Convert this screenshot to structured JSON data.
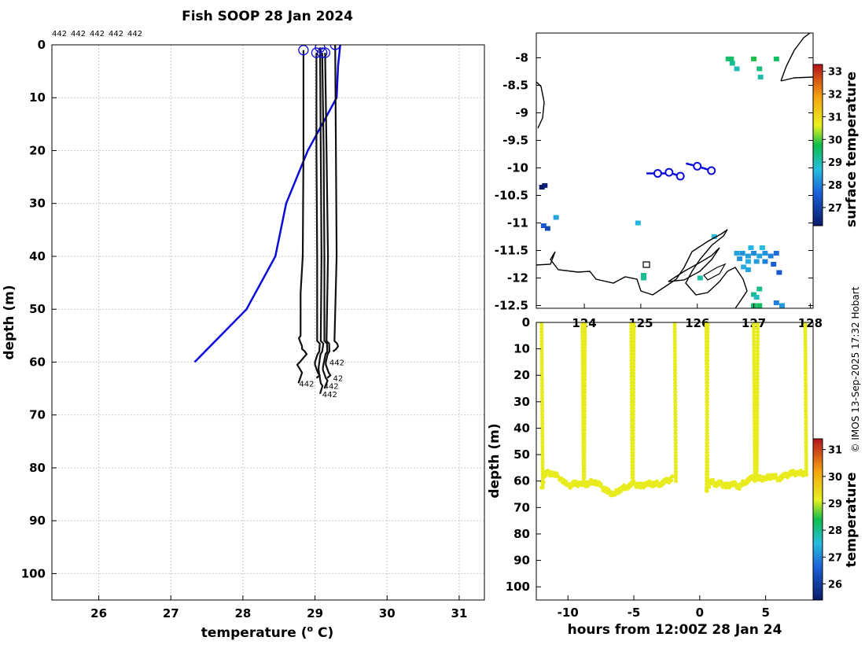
{
  "colors": {
    "axis": "#000000",
    "profile_line": "#111111",
    "reference_line": "#0b0bd9",
    "track": "#0b0bd9",
    "coast": "#000000"
  },
  "chart_data": [
    {
      "id": "profile",
      "type": "line",
      "title": "Fish SOOP 28 Jan 2024",
      "top_labels": [
        "442",
        "442",
        "442",
        "442",
        "442"
      ],
      "xlabel": "temperature (",
      "xlabel_sup": "o",
      "xlabel_end": " C)",
      "ylabel": "depth (m)",
      "xlim": [
        25.35,
        31.35
      ],
      "ylim": [
        105,
        0
      ],
      "xticks": [
        26,
        27,
        28,
        29,
        30,
        31
      ],
      "yticks": [
        0,
        10,
        20,
        30,
        40,
        50,
        60,
        70,
        80,
        90,
        100
      ],
      "grid": true,
      "reference_series": {
        "name": "climatology",
        "points": [
          [
            29.35,
            0
          ],
          [
            29.32,
            4
          ],
          [
            29.3,
            10
          ],
          [
            28.9,
            20
          ],
          [
            28.6,
            30
          ],
          [
            28.45,
            40
          ],
          [
            28.05,
            50
          ],
          [
            27.33,
            60
          ]
        ]
      },
      "profiles": [
        {
          "name": "442",
          "start": [
            28.84,
            1
          ],
          "bottom": 64,
          "points": [
            [
              28.84,
              1
            ],
            [
              28.84,
              20
            ],
            [
              28.83,
              40
            ],
            [
              28.8,
              47
            ],
            [
              28.8,
              55
            ],
            [
              28.82,
              57
            ],
            [
              28.86,
              58
            ],
            [
              28.79,
              60
            ],
            [
              28.82,
              62
            ],
            [
              28.77,
              64
            ]
          ],
          "label": "442",
          "label_at": [
            28.78,
            64
          ]
        },
        {
          "name": "442",
          "start": [
            29.02,
            1.5
          ],
          "bottom": 63,
          "points": [
            [
              29.02,
              1.5
            ],
            [
              29.02,
              20
            ],
            [
              29.03,
              40
            ],
            [
              29.03,
              56
            ],
            [
              29.06,
              58
            ],
            [
              29.0,
              60
            ],
            [
              29.04,
              62
            ],
            [
              29.02,
              63
            ]
          ],
          "label": "",
          "label_at": [
            29.0,
            63
          ]
        },
        {
          "name": "442",
          "start": [
            29.07,
            0.5
          ],
          "bottom": 66,
          "points": [
            [
              29.07,
              0.5
            ],
            [
              29.08,
              20
            ],
            [
              29.09,
              40
            ],
            [
              29.08,
              56
            ],
            [
              29.1,
              58
            ],
            [
              29.05,
              61
            ],
            [
              29.08,
              64
            ],
            [
              29.07,
              66
            ]
          ],
          "label": "442",
          "label_at": [
            29.1,
            66
          ]
        },
        {
          "name": "442",
          "start": [
            29.1,
            1.5
          ],
          "bottom": 65,
          "points": [
            [
              29.1,
              1.5
            ],
            [
              29.12,
              20
            ],
            [
              29.13,
              40
            ],
            [
              29.13,
              56
            ],
            [
              29.17,
              58
            ],
            [
              29.11,
              61
            ],
            [
              29.15,
              63
            ],
            [
              29.13,
              65
            ]
          ],
          "label": "442",
          "label_at": [
            29.12,
            64.5
          ]
        },
        {
          "name": "442",
          "start": [
            29.14,
            1.5
          ],
          "bottom": 63,
          "points": [
            [
              29.14,
              1.5
            ],
            [
              29.16,
              20
            ],
            [
              29.18,
              40
            ],
            [
              29.16,
              56
            ],
            [
              29.2,
              58
            ],
            [
              29.15,
              60
            ],
            [
              29.19,
              62
            ],
            [
              29.17,
              63
            ]
          ],
          "label": "42",
          "label_at": [
            29.25,
            63
          ]
        },
        {
          "name": "442",
          "start": [
            29.28,
            0
          ],
          "bottom": 58,
          "points": [
            [
              29.28,
              0
            ],
            [
              29.29,
              20
            ],
            [
              29.3,
              40
            ],
            [
              29.27,
              56
            ],
            [
              29.32,
              57
            ],
            [
              29.25,
              58
            ]
          ],
          "label": "442",
          "label_at": [
            29.2,
            60
          ]
        }
      ]
    },
    {
      "id": "map",
      "type": "heatmap",
      "xlim": [
        123.15,
        128.05
      ],
      "ylim": [
        -12.55,
        -7.55
      ],
      "xticks": [
        124,
        125,
        126,
        127,
        128
      ],
      "xtick_labels": [
        "124",
        "125",
        "126",
        "127",
        "128"
      ],
      "yticks": [
        -8,
        -8.5,
        -9,
        -9.5,
        -10,
        -10.5,
        -11,
        -11.5,
        -12,
        -12.5
      ],
      "colorbar_label": "surface temperature",
      "colorbar_range": [
        26.2,
        33.3
      ],
      "colorbar_ticks": [
        27,
        28,
        29,
        30,
        31,
        32,
        33
      ],
      "tracks": [
        {
          "points": [
            [
              125.1,
              -10.1
            ],
            [
              125.3,
              -10.1
            ],
            [
              125.55,
              -10.1
            ],
            [
              125.7,
              -10.15
            ]
          ],
          "stations": [
            [
              125.3,
              -10.1
            ],
            [
              125.5,
              -10.08
            ],
            [
              125.7,
              -10.15
            ]
          ]
        },
        {
          "points": [
            [
              125.8,
              -9.92
            ],
            [
              126.0,
              -9.97
            ],
            [
              126.25,
              -10.05
            ]
          ],
          "stations": [
            [
              126.0,
              -9.97
            ],
            [
              126.25,
              -10.05
            ]
          ]
        }
      ],
      "sst_pixels": [
        [
          126.55,
          -8.02,
          29.5
        ],
        [
          126.6,
          -8.02,
          29.5
        ],
        [
          126.62,
          -8.1,
          29.2
        ],
        [
          126.7,
          -8.2,
          29.0
        ],
        [
          127.0,
          -8.02,
          29.8
        ],
        [
          127.4,
          -8.02,
          29.6
        ],
        [
          127.1,
          -8.2,
          29.4
        ],
        [
          127.12,
          -8.35,
          29.1
        ],
        [
          123.25,
          -10.35,
          26.2
        ],
        [
          123.3,
          -10.32,
          26.3
        ],
        [
          123.28,
          -11.05,
          27.5
        ],
        [
          123.35,
          -11.1,
          27.2
        ],
        [
          123.5,
          -10.9,
          28.4
        ],
        [
          124.95,
          -11.0,
          28.6
        ],
        [
          126.3,
          -11.25,
          28.7
        ],
        [
          126.7,
          -11.55,
          28.4
        ],
        [
          126.8,
          -11.55,
          28.2
        ],
        [
          126.9,
          -11.6,
          28.3
        ],
        [
          127.0,
          -11.55,
          28.1
        ],
        [
          127.1,
          -11.6,
          28.4
        ],
        [
          127.2,
          -11.55,
          28.2
        ],
        [
          127.3,
          -11.6,
          28.0
        ],
        [
          127.4,
          -11.55,
          27.8
        ],
        [
          126.75,
          -11.65,
          28.2
        ],
        [
          126.9,
          -11.7,
          28.5
        ],
        [
          127.05,
          -11.7,
          28.3
        ],
        [
          127.2,
          -11.7,
          28.0
        ],
        [
          127.35,
          -11.75,
          27.6
        ],
        [
          126.95,
          -11.45,
          28.6
        ],
        [
          127.15,
          -11.45,
          28.7
        ],
        [
          126.82,
          -11.8,
          28.5
        ],
        [
          127.45,
          -11.9,
          27.5
        ],
        [
          126.9,
          -11.85,
          28.4
        ],
        [
          125.05,
          -11.95,
          29.3
        ],
        [
          125.05,
          -12.0,
          29.2
        ],
        [
          126.05,
          -12.0,
          29.1
        ],
        [
          127.1,
          -12.2,
          29.3
        ],
        [
          127.0,
          -12.3,
          29.3
        ],
        [
          127.05,
          -12.35,
          28.9
        ],
        [
          127.1,
          -12.5,
          29.6
        ],
        [
          127.0,
          -12.5,
          29.5
        ],
        [
          127.4,
          -12.45,
          28.0
        ],
        [
          127.5,
          -12.5,
          28.3
        ]
      ]
    },
    {
      "id": "section",
      "type": "scatter",
      "xlabel": "hours from 12:00Z 28 Jan 24",
      "ylabel": "depth (m)",
      "xlim": [
        -12.4,
        8.6
      ],
      "ylim": [
        105,
        0
      ],
      "xticks": [
        -10,
        -5,
        0,
        5
      ],
      "yticks": [
        0,
        10,
        20,
        30,
        40,
        50,
        60,
        70,
        80,
        90,
        100
      ],
      "colorbar_label": "temperature",
      "colorbar_range": [
        25.4,
        31.4
      ],
      "colorbar_ticks": [
        26,
        27,
        28,
        29,
        30,
        31
      ],
      "point_temperature": 29.2,
      "profiles_down": [
        [
          -12.0,
          63
        ],
        [
          -8.9,
          62
        ],
        [
          -5.2,
          60
        ],
        [
          -1.9,
          61
        ],
        [
          0.5,
          63
        ],
        [
          4.1,
          59
        ],
        [
          8.0,
          58
        ]
      ],
      "profiles_up": [
        [
          -8.7,
          62
        ],
        [
          -5.0,
          60
        ],
        [
          0.6,
          63
        ],
        [
          4.4,
          59
        ]
      ],
      "bottom_trace": [
        [
          -12.0,
          62
        ],
        [
          -11.7,
          57
        ],
        [
          -11.2,
          57
        ],
        [
          -10.5,
          59
        ],
        [
          -10.0,
          62
        ],
        [
          -9.5,
          61
        ],
        [
          -9.0,
          61
        ],
        [
          -8.5,
          61
        ],
        [
          -8.0,
          60
        ],
        [
          -7.5,
          62
        ],
        [
          -7.0,
          64
        ],
        [
          -6.5,
          65
        ],
        [
          -6.0,
          63
        ],
        [
          -5.5,
          62
        ],
        [
          -5.0,
          61
        ],
        [
          -4.5,
          62
        ],
        [
          -4.0,
          61
        ],
        [
          -3.5,
          61
        ],
        [
          -3.0,
          61
        ],
        [
          -2.5,
          60
        ],
        [
          -2.0,
          59
        ],
        [
          0.5,
          64
        ],
        [
          0.8,
          60
        ],
        [
          1.2,
          61
        ],
        [
          1.6,
          61
        ],
        [
          2.0,
          62
        ],
        [
          2.5,
          61
        ],
        [
          3.0,
          62
        ],
        [
          3.5,
          60
        ],
        [
          4.0,
          59
        ],
        [
          4.5,
          59
        ],
        [
          5.0,
          59
        ],
        [
          5.5,
          58
        ],
        [
          6.0,
          59
        ],
        [
          6.5,
          58
        ],
        [
          7.0,
          57
        ],
        [
          7.5,
          57
        ],
        [
          8.0,
          57
        ]
      ],
      "fallback_series": [
        [
          -12.0,
          0
        ],
        [
          -8.9,
          0
        ],
        [
          -5.2,
          0
        ],
        [
          -1.9,
          0
        ],
        [
          0.5,
          58
        ],
        [
          4.1,
          0
        ],
        [
          8.0,
          0
        ]
      ]
    }
  ],
  "credit": "© IMOS 13-Sep-2025 17:32 Hobart"
}
